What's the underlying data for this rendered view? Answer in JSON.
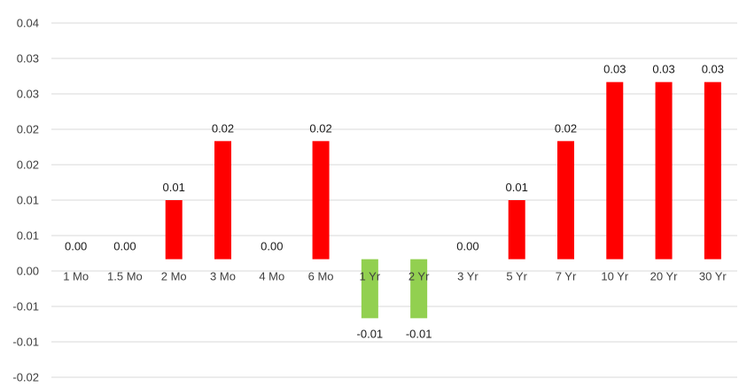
{
  "chart_data": {
    "type": "bar",
    "categories": [
      "1 Mo",
      "1.5 Mo",
      "2 Mo",
      "3 Mo",
      "4 Mo",
      "6 Mo",
      "1 Yr",
      "2 Yr",
      "3 Yr",
      "5 Yr",
      "7 Yr",
      "10 Yr",
      "20 Yr",
      "30 Yr"
    ],
    "values": [
      0.0,
      0.0,
      0.01,
      0.02,
      0.0,
      0.02,
      -0.01,
      -0.01,
      0.0,
      0.01,
      0.02,
      0.03,
      0.03,
      0.03
    ],
    "data_labels": [
      "0.00",
      "0.00",
      "0.01",
      "0.02",
      "0.00",
      "0.02",
      "-0.01",
      "-0.01",
      "0.00",
      "0.01",
      "0.02",
      "0.03",
      "0.03",
      "0.03"
    ],
    "y_tick_labels": [
      "0.04",
      "0.03",
      "0.03",
      "0.02",
      "0.02",
      "0.01",
      "0.01",
      "0.00",
      "-0.01",
      "-0.01",
      "-0.02"
    ],
    "ylim": [
      -0.02,
      0.04
    ],
    "title": "",
    "xlabel": "",
    "ylabel": "",
    "grid": true,
    "legend": "none",
    "colors": {
      "positive": "#ff0000",
      "negative": "#92d050",
      "grid": "#d9d9d9"
    }
  }
}
